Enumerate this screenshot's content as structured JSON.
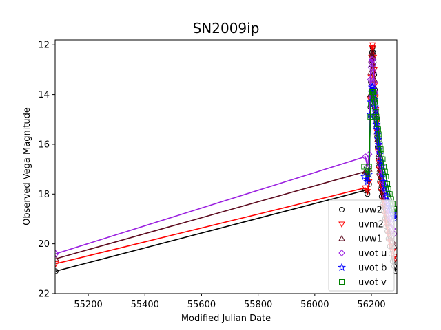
{
  "chart_data": {
    "type": "scatter",
    "title": "SN2009ip",
    "xlabel": "Modified Julian Date",
    "ylabel": "Observed Vega Magnitude",
    "xlim": [
      55083,
      56290
    ],
    "ylim": [
      22,
      11.8
    ],
    "y_inverted": true,
    "grid": false,
    "legend_position": "lower-right",
    "x_ticks": [
      55200,
      55400,
      55600,
      55800,
      56000,
      56200
    ],
    "x_tick_labels": [
      "55200",
      "55400",
      "55600",
      "55800",
      "56000",
      "56200"
    ],
    "y_ticks": [
      12,
      14,
      16,
      18,
      20,
      22
    ],
    "y_tick_labels": [
      "12",
      "14",
      "16",
      "18",
      "20",
      "22"
    ],
    "series": [
      {
        "name": "uvw2",
        "marker": "circle",
        "color": "#000000",
        "points": [
          [
            55085,
            21.1
          ],
          [
            56178,
            17.85
          ],
          [
            56186,
            18.0
          ],
          [
            56192,
            17.6
          ],
          [
            56196,
            14.5
          ],
          [
            56198,
            13.5
          ],
          [
            56200,
            12.8
          ],
          [
            56202,
            12.3
          ],
          [
            56204,
            12.1
          ],
          [
            56206,
            12.3
          ],
          [
            56208,
            12.7
          ],
          [
            56210,
            13.2
          ],
          [
            56212,
            13.8
          ],
          [
            56214,
            14.3
          ],
          [
            56216,
            14.8
          ],
          [
            56218,
            15.3
          ],
          [
            56220,
            15.7
          ],
          [
            56222,
            16.1
          ],
          [
            56224,
            16.5
          ],
          [
            56226,
            16.9
          ],
          [
            56228,
            17.2
          ],
          [
            56230,
            17.5
          ],
          [
            56233,
            17.8
          ],
          [
            56236,
            18.1
          ],
          [
            56240,
            18.4
          ],
          [
            56244,
            18.7
          ],
          [
            56248,
            19.0
          ],
          [
            56252,
            19.3
          ],
          [
            56256,
            19.5
          ],
          [
            56260,
            19.8
          ],
          [
            56265,
            20.1
          ],
          [
            56270,
            20.4
          ],
          [
            56275,
            20.7
          ],
          [
            56280,
            20.9
          ],
          [
            56285,
            21.1
          ]
        ]
      },
      {
        "name": "uvm2",
        "marker": "triangle-down",
        "color": "#ff0000",
        "points": [
          [
            55085,
            20.8
          ],
          [
            56178,
            17.75
          ],
          [
            56186,
            17.9
          ],
          [
            56192,
            17.5
          ],
          [
            56196,
            14.2
          ],
          [
            56198,
            13.3
          ],
          [
            56200,
            12.5
          ],
          [
            56202,
            12.1
          ],
          [
            56204,
            12.0
          ],
          [
            56206,
            12.1
          ],
          [
            56208,
            12.5
          ],
          [
            56210,
            13.0
          ],
          [
            56212,
            13.6
          ],
          [
            56214,
            14.1
          ],
          [
            56216,
            14.6
          ],
          [
            56218,
            15.1
          ],
          [
            56220,
            15.5
          ],
          [
            56222,
            15.9
          ],
          [
            56224,
            16.3
          ],
          [
            56226,
            16.7
          ],
          [
            56228,
            17.0
          ],
          [
            56230,
            17.3
          ],
          [
            56233,
            17.6
          ],
          [
            56236,
            17.9
          ],
          [
            56240,
            18.2
          ],
          [
            56244,
            18.5
          ],
          [
            56248,
            18.8
          ],
          [
            56252,
            19.1
          ],
          [
            56256,
            19.3
          ],
          [
            56260,
            19.6
          ],
          [
            56265,
            19.9
          ],
          [
            56270,
            20.1
          ],
          [
            56275,
            20.3
          ],
          [
            56280,
            20.5
          ],
          [
            56285,
            20.6
          ]
        ]
      },
      {
        "name": "uvw1",
        "marker": "triangle-up",
        "color": "#5c0a1e",
        "points": [
          [
            55085,
            20.6
          ],
          [
            56178,
            17.1
          ],
          [
            56186,
            17.4
          ],
          [
            56192,
            17.0
          ],
          [
            56196,
            14.0
          ],
          [
            56198,
            13.1
          ],
          [
            56200,
            12.6
          ],
          [
            56202,
            12.4
          ],
          [
            56204,
            12.3
          ],
          [
            56206,
            12.5
          ],
          [
            56208,
            12.9
          ],
          [
            56210,
            13.4
          ],
          [
            56212,
            13.9
          ],
          [
            56214,
            14.3
          ],
          [
            56216,
            14.7
          ],
          [
            56218,
            15.1
          ],
          [
            56220,
            15.5
          ],
          [
            56222,
            15.8
          ],
          [
            56224,
            16.1
          ],
          [
            56226,
            16.4
          ],
          [
            56228,
            16.7
          ],
          [
            56230,
            17.0
          ],
          [
            56233,
            17.3
          ],
          [
            56236,
            17.6
          ],
          [
            56240,
            17.9
          ],
          [
            56244,
            18.2
          ],
          [
            56248,
            18.5
          ],
          [
            56252,
            18.8
          ],
          [
            56256,
            19.0
          ],
          [
            56260,
            19.2
          ],
          [
            56265,
            19.5
          ],
          [
            56270,
            19.7
          ],
          [
            56275,
            19.9
          ],
          [
            56280,
            20.1
          ]
        ]
      },
      {
        "name": "uvot u",
        "marker": "diamond",
        "color": "#9a1fe0",
        "points": [
          [
            55085,
            20.4
          ],
          [
            56178,
            16.5
          ],
          [
            56186,
            16.9
          ],
          [
            56192,
            16.4
          ],
          [
            56196,
            13.4
          ],
          [
            56198,
            12.9
          ],
          [
            56200,
            12.7
          ],
          [
            56202,
            12.6
          ],
          [
            56204,
            12.6
          ],
          [
            56206,
            12.8
          ],
          [
            56208,
            13.1
          ],
          [
            56210,
            13.5
          ],
          [
            56212,
            13.9
          ],
          [
            56214,
            14.3
          ],
          [
            56216,
            14.6
          ],
          [
            56218,
            14.9
          ],
          [
            56220,
            15.2
          ],
          [
            56222,
            15.5
          ],
          [
            56224,
            15.8
          ],
          [
            56226,
            16.0
          ],
          [
            56228,
            16.3
          ],
          [
            56230,
            16.6
          ],
          [
            56233,
            16.9
          ],
          [
            56236,
            17.2
          ],
          [
            56240,
            17.5
          ],
          [
            56244,
            17.8
          ],
          [
            56248,
            18.1
          ],
          [
            56252,
            18.4
          ],
          [
            56256,
            18.6
          ],
          [
            56260,
            18.8
          ],
          [
            56265,
            19.0
          ],
          [
            56270,
            19.2
          ],
          [
            56275,
            19.4
          ],
          [
            56280,
            19.6
          ]
        ]
      },
      {
        "name": "uvot b",
        "marker": "star",
        "color": "#0000ff",
        "points": [
          [
            56176,
            17.3
          ],
          [
            56186,
            17.5
          ],
          [
            56192,
            17.2
          ],
          [
            56196,
            14.8
          ],
          [
            56198,
            14.3
          ],
          [
            56200,
            13.9
          ],
          [
            56202,
            13.7
          ],
          [
            56204,
            13.7
          ],
          [
            56206,
            13.8
          ],
          [
            56208,
            14.0
          ],
          [
            56210,
            14.2
          ],
          [
            56212,
            14.5
          ],
          [
            56214,
            14.7
          ],
          [
            56216,
            15.0
          ],
          [
            56218,
            15.2
          ],
          [
            56220,
            15.4
          ],
          [
            56222,
            15.6
          ],
          [
            56224,
            15.8
          ],
          [
            56226,
            16.0
          ],
          [
            56228,
            16.2
          ],
          [
            56230,
            16.4
          ],
          [
            56233,
            16.7
          ],
          [
            56236,
            16.9
          ],
          [
            56240,
            17.2
          ],
          [
            56244,
            17.5
          ],
          [
            56248,
            17.7
          ],
          [
            56252,
            17.9
          ],
          [
            56256,
            18.1
          ],
          [
            56260,
            18.3
          ],
          [
            56265,
            18.5
          ],
          [
            56270,
            18.6
          ],
          [
            56275,
            18.8
          ],
          [
            56280,
            18.9
          ],
          [
            56285,
            19.0
          ]
        ]
      },
      {
        "name": "uvot v",
        "marker": "square",
        "color": "#008000",
        "points": [
          [
            56174,
            16.9
          ],
          [
            56186,
            17.2
          ],
          [
            56192,
            16.9
          ],
          [
            56196,
            14.9
          ],
          [
            56198,
            14.4
          ],
          [
            56200,
            14.1
          ],
          [
            56202,
            13.9
          ],
          [
            56204,
            13.9
          ],
          [
            56206,
            13.9
          ],
          [
            56208,
            14.0
          ],
          [
            56210,
            14.2
          ],
          [
            56212,
            14.3
          ],
          [
            56214,
            14.5
          ],
          [
            56216,
            14.7
          ],
          [
            56218,
            14.9
          ],
          [
            56220,
            15.0
          ],
          [
            56222,
            15.2
          ],
          [
            56224,
            15.4
          ],
          [
            56226,
            15.6
          ],
          [
            56228,
            15.8
          ],
          [
            56230,
            16.0
          ],
          [
            56233,
            16.2
          ],
          [
            56236,
            16.4
          ],
          [
            56240,
            16.6
          ],
          [
            56244,
            16.9
          ],
          [
            56248,
            17.1
          ],
          [
            56252,
            17.3
          ],
          [
            56256,
            17.6
          ],
          [
            56260,
            17.8
          ],
          [
            56265,
            18.0
          ],
          [
            56270,
            18.2
          ],
          [
            56275,
            18.4
          ],
          [
            56280,
            18.6
          ],
          [
            56285,
            18.7
          ]
        ]
      }
    ]
  }
}
